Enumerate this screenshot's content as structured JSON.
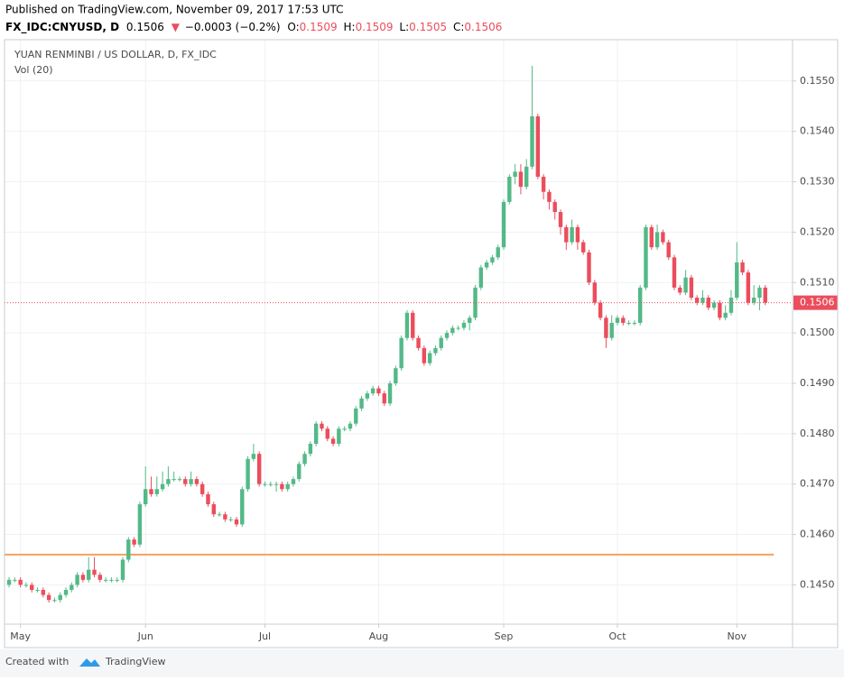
{
  "header": {
    "published": "Published on TradingView.com, November 09, 2017 17:53 UTC",
    "symbol": "FX_IDC:CNYUSD, D",
    "last": "0.1506",
    "arrow": "▼",
    "change": "−0.0003 (−0.2%)",
    "o_label": "O:",
    "open": "0.1509",
    "h_label": "H:",
    "high": "0.1509",
    "l_label": "L:",
    "low": "0.1505",
    "c_label": "C:",
    "close": "0.1506"
  },
  "chart_data": {
    "type": "candlestick",
    "title": "YUAN RENMINBI / US DOLLAR, D, FX_IDC",
    "subtitle": "Vol (20)",
    "up_color": "#53b987",
    "down_color": "#eb4d5c",
    "grid": true,
    "last_price": 0.1506,
    "last_price_color": "#eb4d5c",
    "hline": 0.1456,
    "hline_color": "#f5a15c",
    "xlim": [
      -0.8,
      137.8
    ],
    "xticks": [
      {
        "value": 2,
        "label": "May"
      },
      {
        "value": 24,
        "label": "Jun"
      },
      {
        "value": 45,
        "label": "Jul"
      },
      {
        "value": 65,
        "label": "Aug"
      },
      {
        "value": 87,
        "label": "Sep"
      },
      {
        "value": 107,
        "label": "Oct"
      },
      {
        "value": 128,
        "label": "Nov"
      }
    ],
    "ylim": [
      0.14422,
      0.15582
    ],
    "yticks": [
      {
        "value": 0.145,
        "label": "0.1450"
      },
      {
        "value": 0.146,
        "label": "0.1460"
      },
      {
        "value": 0.147,
        "label": "0.1470"
      },
      {
        "value": 0.148,
        "label": "0.1480"
      },
      {
        "value": 0.149,
        "label": "0.1490"
      },
      {
        "value": 0.15,
        "label": "0.1500"
      },
      {
        "value": 0.151,
        "label": "0.1510"
      },
      {
        "value": 0.152,
        "label": "0.1520"
      },
      {
        "value": 0.153,
        "label": "0.1530"
      },
      {
        "value": 0.154,
        "label": "0.1540"
      },
      {
        "value": 0.155,
        "label": "0.1550"
      }
    ],
    "ohlc": [
      [
        0.145,
        0.14515,
        0.14495,
        0.1451
      ],
      [
        0.1451,
        0.14515,
        0.14505,
        0.1451
      ],
      [
        0.1451,
        0.14515,
        0.14495,
        0.145
      ],
      [
        0.145,
        0.14505,
        0.14495,
        0.145
      ],
      [
        0.145,
        0.14505,
        0.14485,
        0.1449
      ],
      [
        0.1449,
        0.14495,
        0.14485,
        0.1449
      ],
      [
        0.1449,
        0.14495,
        0.14475,
        0.1448
      ],
      [
        0.1448,
        0.14485,
        0.14465,
        0.1447
      ],
      [
        0.1447,
        0.14475,
        0.14465,
        0.1447
      ],
      [
        0.1447,
        0.14485,
        0.14465,
        0.1448
      ],
      [
        0.1448,
        0.14495,
        0.14475,
        0.1449
      ],
      [
        0.1449,
        0.14505,
        0.14485,
        0.145
      ],
      [
        0.145,
        0.14525,
        0.14495,
        0.1452
      ],
      [
        0.1452,
        0.14525,
        0.14505,
        0.1451
      ],
      [
        0.1451,
        0.14555,
        0.14505,
        0.1453
      ],
      [
        0.1453,
        0.14555,
        0.14515,
        0.1452
      ],
      [
        0.1452,
        0.14525,
        0.14505,
        0.1451
      ],
      [
        0.1451,
        0.14515,
        0.14505,
        0.1451
      ],
      [
        0.1451,
        0.14515,
        0.14505,
        0.1451
      ],
      [
        0.1451,
        0.14515,
        0.14505,
        0.1451
      ],
      [
        0.1451,
        0.14555,
        0.14505,
        0.1455
      ],
      [
        0.1455,
        0.14595,
        0.14545,
        0.1459
      ],
      [
        0.1459,
        0.14595,
        0.14575,
        0.1458
      ],
      [
        0.1458,
        0.14665,
        0.14575,
        0.1466
      ],
      [
        0.1466,
        0.14735,
        0.14655,
        0.1469
      ],
      [
        0.1469,
        0.14715,
        0.14675,
        0.1468
      ],
      [
        0.1468,
        0.14715,
        0.14675,
        0.1469
      ],
      [
        0.1469,
        0.14725,
        0.14685,
        0.147
      ],
      [
        0.147,
        0.14735,
        0.14695,
        0.1471
      ],
      [
        0.1471,
        0.14725,
        0.14705,
        0.1471
      ],
      [
        0.1471,
        0.14715,
        0.14705,
        0.1471
      ],
      [
        0.1471,
        0.14715,
        0.14695,
        0.147
      ],
      [
        0.147,
        0.14725,
        0.14695,
        0.1471
      ],
      [
        0.1471,
        0.14715,
        0.14695,
        0.147
      ],
      [
        0.147,
        0.14705,
        0.14675,
        0.1468
      ],
      [
        0.1468,
        0.14685,
        0.14655,
        0.1466
      ],
      [
        0.1466,
        0.14665,
        0.14635,
        0.1464
      ],
      [
        0.1464,
        0.14645,
        0.14635,
        0.1464
      ],
      [
        0.1464,
        0.14645,
        0.14625,
        0.1463
      ],
      [
        0.1463,
        0.14635,
        0.14625,
        0.1463
      ],
      [
        0.1463,
        0.14635,
        0.14615,
        0.1462
      ],
      [
        0.1462,
        0.14695,
        0.14615,
        0.1469
      ],
      [
        0.1469,
        0.14755,
        0.14685,
        0.1475
      ],
      [
        0.1475,
        0.1478,
        0.14745,
        0.1476
      ],
      [
        0.1476,
        0.14765,
        0.14695,
        0.147
      ],
      [
        0.147,
        0.14705,
        0.14695,
        0.147
      ],
      [
        0.147,
        0.14705,
        0.14695,
        0.147
      ],
      [
        0.147,
        0.14705,
        0.14685,
        0.147
      ],
      [
        0.147,
        0.14705,
        0.14685,
        0.1469
      ],
      [
        0.1469,
        0.14705,
        0.14685,
        0.147
      ],
      [
        0.147,
        0.14715,
        0.14695,
        0.1471
      ],
      [
        0.1471,
        0.14745,
        0.14705,
        0.1474
      ],
      [
        0.1474,
        0.14765,
        0.14735,
        0.1476
      ],
      [
        0.1476,
        0.14785,
        0.14755,
        0.1478
      ],
      [
        0.1478,
        0.14825,
        0.14775,
        0.1482
      ],
      [
        0.1482,
        0.14825,
        0.14805,
        0.1481
      ],
      [
        0.1481,
        0.14815,
        0.14785,
        0.1479
      ],
      [
        0.1479,
        0.14795,
        0.14775,
        0.1478
      ],
      [
        0.1478,
        0.14815,
        0.14775,
        0.1481
      ],
      [
        0.1481,
        0.14815,
        0.14805,
        0.1481
      ],
      [
        0.1481,
        0.14825,
        0.14805,
        0.1482
      ],
      [
        0.1482,
        0.14855,
        0.14815,
        0.1485
      ],
      [
        0.1485,
        0.14875,
        0.14845,
        0.1487
      ],
      [
        0.1487,
        0.14885,
        0.14865,
        0.1488
      ],
      [
        0.1488,
        0.14895,
        0.14875,
        0.1489
      ],
      [
        0.1489,
        0.14895,
        0.14875,
        0.1488
      ],
      [
        0.1488,
        0.14885,
        0.14855,
        0.1486
      ],
      [
        0.1486,
        0.14905,
        0.14855,
        0.149
      ],
      [
        0.149,
        0.14935,
        0.14895,
        0.1493
      ],
      [
        0.1493,
        0.14995,
        0.14925,
        0.1499
      ],
      [
        0.1499,
        0.15045,
        0.14985,
        0.1504
      ],
      [
        0.1504,
        0.15045,
        0.14985,
        0.1499
      ],
      [
        0.1499,
        0.14995,
        0.14965,
        0.1497
      ],
      [
        0.1497,
        0.14975,
        0.14935,
        0.1494
      ],
      [
        0.1494,
        0.14965,
        0.14935,
        0.1496
      ],
      [
        0.1496,
        0.14975,
        0.14955,
        0.1497
      ],
      [
        0.1497,
        0.14995,
        0.14965,
        0.1499
      ],
      [
        0.1499,
        0.15005,
        0.14985,
        0.15
      ],
      [
        0.15,
        0.15015,
        0.14995,
        0.1501
      ],
      [
        0.1501,
        0.15015,
        0.15005,
        0.1501
      ],
      [
        0.1501,
        0.15025,
        0.15005,
        0.1502
      ],
      [
        0.1502,
        0.15035,
        0.15005,
        0.1503
      ],
      [
        0.1503,
        0.15095,
        0.15025,
        0.1509
      ],
      [
        0.1509,
        0.15135,
        0.15085,
        0.1513
      ],
      [
        0.1513,
        0.15145,
        0.15125,
        0.1514
      ],
      [
        0.1514,
        0.15155,
        0.15135,
        0.1515
      ],
      [
        0.1515,
        0.15175,
        0.15145,
        0.1517
      ],
      [
        0.1517,
        0.15265,
        0.15165,
        0.1526
      ],
      [
        0.1526,
        0.15315,
        0.15255,
        0.1531
      ],
      [
        0.1531,
        0.15335,
        0.15295,
        0.1532
      ],
      [
        0.1532,
        0.15335,
        0.15275,
        0.1529
      ],
      [
        0.1529,
        0.15345,
        0.15285,
        0.1533
      ],
      [
        0.1533,
        0.1553,
        0.15325,
        0.1543
      ],
      [
        0.1543,
        0.15435,
        0.15305,
        0.1531
      ],
      [
        0.1531,
        0.15315,
        0.15265,
        0.1528
      ],
      [
        0.1528,
        0.15285,
        0.15245,
        0.1526
      ],
      [
        0.1526,
        0.15265,
        0.15225,
        0.1524
      ],
      [
        0.1524,
        0.15245,
        0.15195,
        0.1521
      ],
      [
        0.1521,
        0.15215,
        0.15165,
        0.1518
      ],
      [
        0.1518,
        0.15225,
        0.15175,
        0.1521
      ],
      [
        0.1521,
        0.15215,
        0.15165,
        0.1518
      ],
      [
        0.1518,
        0.15185,
        0.15155,
        0.1516
      ],
      [
        0.1516,
        0.15165,
        0.15095,
        0.151
      ],
      [
        0.151,
        0.15105,
        0.15055,
        0.1506
      ],
      [
        0.1506,
        0.15065,
        0.15025,
        0.1503
      ],
      [
        0.1503,
        0.15035,
        0.1497,
        0.1499
      ],
      [
        0.1499,
        0.15035,
        0.14985,
        0.1502
      ],
      [
        0.1502,
        0.15035,
        0.15015,
        0.1503
      ],
      [
        0.1503,
        0.15035,
        0.15015,
        0.1502
      ],
      [
        0.1502,
        0.15025,
        0.15015,
        0.1502
      ],
      [
        0.1502,
        0.15025,
        0.15015,
        0.1502
      ],
      [
        0.1502,
        0.15095,
        0.15015,
        0.1509
      ],
      [
        0.1509,
        0.15215,
        0.15085,
        0.1521
      ],
      [
        0.1521,
        0.15215,
        0.15165,
        0.1517
      ],
      [
        0.1517,
        0.15215,
        0.15165,
        0.152
      ],
      [
        0.152,
        0.15205,
        0.15175,
        0.1518
      ],
      [
        0.1518,
        0.15185,
        0.15145,
        0.1515
      ],
      [
        0.1515,
        0.15155,
        0.15085,
        0.1509
      ],
      [
        0.1509,
        0.15095,
        0.15075,
        0.1508
      ],
      [
        0.1508,
        0.15125,
        0.15075,
        0.1511
      ],
      [
        0.1511,
        0.15115,
        0.15065,
        0.1507
      ],
      [
        0.1507,
        0.15075,
        0.15055,
        0.1506
      ],
      [
        0.1506,
        0.15085,
        0.15055,
        0.1507
      ],
      [
        0.1507,
        0.15075,
        0.15045,
        0.1505
      ],
      [
        0.1505,
        0.15065,
        0.15045,
        0.1506
      ],
      [
        0.1506,
        0.15065,
        0.15025,
        0.1503
      ],
      [
        0.1503,
        0.15055,
        0.15025,
        0.1504
      ],
      [
        0.1504,
        0.15085,
        0.15035,
        0.1507
      ],
      [
        0.1507,
        0.1518,
        0.15065,
        0.1514
      ],
      [
        0.1514,
        0.15145,
        0.15115,
        0.1512
      ],
      [
        0.1512,
        0.15125,
        0.15055,
        0.1506
      ],
      [
        0.1506,
        0.15095,
        0.15055,
        0.1507
      ],
      [
        0.1507,
        0.15095,
        0.15045,
        0.1509
      ],
      [
        0.1509,
        0.15095,
        0.15055,
        0.1506
      ]
    ]
  },
  "footer": {
    "created": "Created with",
    "brand": "TradingView"
  }
}
